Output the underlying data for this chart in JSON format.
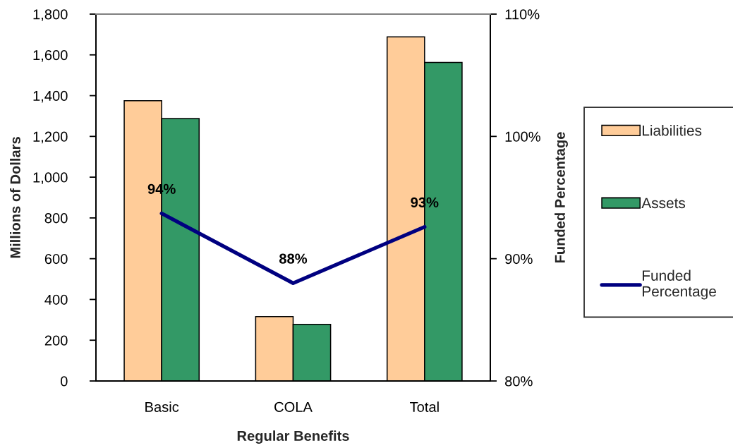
{
  "chart_data": {
    "type": "bar",
    "xlabel": "Regular Benefits",
    "ylabel": "Millions of Dollars",
    "y2label": "Funded Percentage",
    "categories": [
      "Basic",
      "COLA",
      "Total"
    ],
    "series": [
      {
        "name": "Liabilities",
        "color": "#ffcc99",
        "values": [
          1375,
          316,
          1688
        ]
      },
      {
        "name": "Assets",
        "color": "#339966",
        "values": [
          1288,
          278,
          1563
        ]
      },
      {
        "name": "Funded Percentage",
        "type": "line",
        "axis": "y2",
        "color": "#000080",
        "values": [
          93.7,
          88.0,
          92.6
        ],
        "value_labels": [
          "94%",
          "88%",
          "93%"
        ]
      }
    ],
    "ylim": [
      0,
      1800
    ],
    "yticks": [
      0,
      200,
      400,
      600,
      800,
      {
        "value": 1000,
        "label": "1,000"
      },
      {
        "value": 1200,
        "label": "1,200"
      },
      {
        "value": 1400,
        "label": "1,400"
      },
      {
        "value": 1600,
        "label": "1,600"
      },
      {
        "value": 1800,
        "label": "1,800"
      }
    ],
    "y2lim": [
      80,
      110
    ],
    "y2ticks": [
      {
        "value": 80,
        "label": "80%"
      },
      {
        "value": 90,
        "label": "90%"
      },
      {
        "value": 100,
        "label": "100%"
      },
      {
        "value": 110,
        "label": "110%"
      }
    ],
    "legend": "right",
    "marker": "none",
    "line_style": "solid"
  }
}
